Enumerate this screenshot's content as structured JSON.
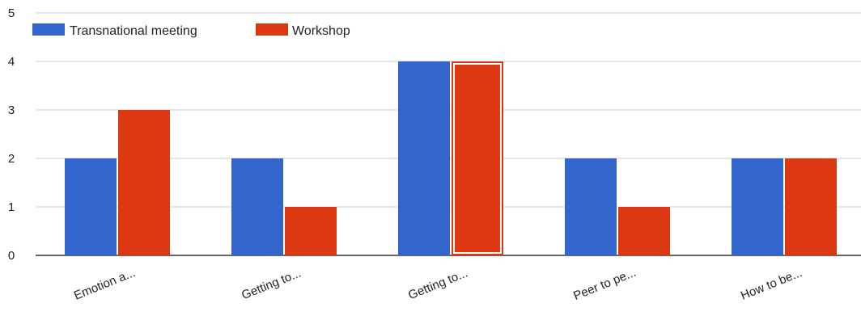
{
  "chart_data": {
    "type": "bar",
    "categories": [
      "Emotion a...",
      "Getting to...",
      "Getting to...",
      "Peer to pe...",
      "How to be..."
    ],
    "series": [
      {
        "name": "Transnational meeting",
        "values": [
          2,
          2,
          4,
          2,
          2
        ],
        "color": "#3366cc"
      },
      {
        "name": "Workshop",
        "values": [
          3,
          1,
          4,
          1,
          2
        ],
        "color": "#dc3912"
      }
    ],
    "title": "",
    "xlabel": "",
    "ylabel": "",
    "ylim": [
      0,
      5
    ],
    "y_ticks": [
      0,
      1,
      2,
      3,
      4,
      5
    ],
    "grid": true,
    "legend_position": "top-left",
    "highlighted": {
      "series": "Workshop",
      "category_index": 2
    }
  }
}
